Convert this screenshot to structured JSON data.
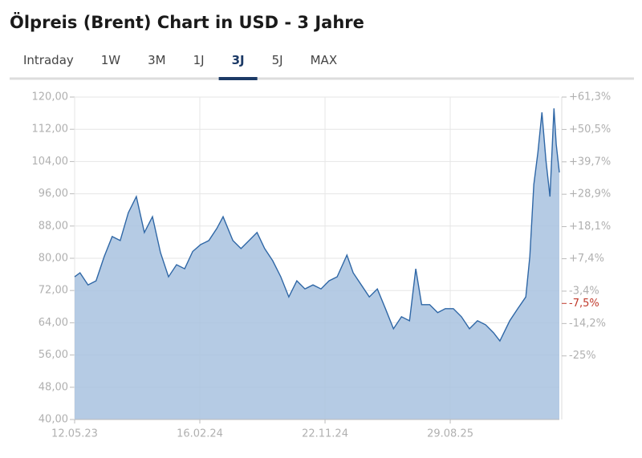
{
  "title": "Ölpreis (Brent) Chart in USD - 3 Jahre",
  "tabs": {
    "items": [
      "Intraday",
      "1W",
      "3M",
      "1J",
      "3J",
      "5J",
      "MAX"
    ],
    "active": 4
  },
  "chart_data": {
    "type": "area",
    "x": [
      "12.05.23",
      "24.05.23",
      "11.06.23",
      "29.06.23",
      "17.07.23",
      "04.08.23",
      "22.08.23",
      "09.09.23",
      "27.09.23",
      "15.10.23",
      "02.11.23",
      "20.11.23",
      "08.12.23",
      "26.12.23",
      "13.01.24",
      "31.01.24",
      "18.02.24",
      "07.03.24",
      "25.03.24",
      "08.04.24",
      "30.04.24",
      "18.05.24",
      "05.06.24",
      "23.06.24",
      "10.07.24",
      "28.07.24",
      "15.08.24",
      "02.09.24",
      "20.09.24",
      "08.10.24",
      "26.10.24",
      "13.11.24",
      "01.12.24",
      "19.12.24",
      "10.01.25",
      "24.01.25",
      "11.02.25",
      "01.03.25",
      "19.03.25",
      "06.04.25",
      "24.04.25",
      "12.05.25",
      "30.05.25",
      "13.06.25",
      "26.06.25",
      "14.07.25",
      "01.08.25",
      "18.08.25",
      "05.09.25",
      "23.09.25",
      "11.10.25",
      "29.10.25",
      "16.11.25",
      "04.12.25",
      "18.12.25",
      "09.01.26",
      "27.01.26",
      "14.02.26",
      "23.02.26",
      "04.03.26",
      "13.03.26",
      "22.03.26",
      "31.03.26",
      "09.04.26",
      "18.04.26",
      "23.04.26",
      "30.04.26"
    ],
    "series": [
      {
        "name": "Brent",
        "color": "#2f67a6",
        "fill": "#a8c2df",
        "values": [
          75.4,
          76.4,
          73.4,
          74.4,
          80.4,
          85.4,
          84.4,
          91.3,
          95.3,
          86.4,
          90.3,
          81.4,
          75.4,
          78.4,
          77.4,
          81.7,
          83.4,
          84.4,
          87.4,
          90.3,
          84.4,
          82.4,
          84.4,
          86.4,
          82.4,
          79.4,
          75.4,
          70.4,
          74.4,
          72.4,
          73.4,
          72.4,
          74.4,
          75.4,
          80.8,
          76.4,
          73.4,
          70.4,
          72.4,
          67.5,
          62.5,
          65.5,
          64.5,
          77.4,
          68.5,
          68.5,
          66.5,
          67.5,
          67.5,
          65.5,
          62.5,
          64.5,
          63.5,
          61.5,
          59.5,
          64.5,
          67.5,
          70.4,
          80.4,
          98.3,
          106.3,
          116.2,
          104.3,
          95.3,
          117.2,
          108.3,
          101.3
        ]
      }
    ],
    "xlim": [
      "12.05.23",
      "30.04.26"
    ],
    "xticks": [
      "12.05.23",
      "16.02.24",
      "22.11.24",
      "29.08.25"
    ],
    "ylim": [
      40,
      120
    ],
    "yticks": [
      {
        "value": 40,
        "label": "40,00"
      },
      {
        "value": 48,
        "label": "48,00"
      },
      {
        "value": 56,
        "label": "56,00"
      },
      {
        "value": 64,
        "label": "64,00"
      },
      {
        "value": 72,
        "label": "72,00"
      },
      {
        "value": 80,
        "label": "80,00"
      },
      {
        "value": 88,
        "label": "88,00"
      },
      {
        "value": 96,
        "label": "96,00"
      },
      {
        "value": 104,
        "label": "104,00"
      },
      {
        "value": 112,
        "label": "112,00"
      },
      {
        "value": 120,
        "label": "120,00"
      }
    ],
    "y2lim": [
      -46.2,
      61.3
    ],
    "y2ticks": [
      {
        "value": -25,
        "label": "-25%"
      },
      {
        "value": -14.2,
        "label": "-14,2%"
      },
      {
        "value": -3.4,
        "label": "-3,4%"
      },
      {
        "value": 7.4,
        "label": "+7,4%"
      },
      {
        "value": 18.1,
        "label": "+18,1%"
      },
      {
        "value": 28.9,
        "label": "+28,9%"
      },
      {
        "value": 39.7,
        "label": "+39,7%"
      },
      {
        "value": 50.5,
        "label": "+50,5%"
      },
      {
        "value": 61.3,
        "label": "+61,3%"
      }
    ],
    "y2_marker": {
      "value": -7.5,
      "label": "-7,5%",
      "color": "#c0392b"
    },
    "grid": true
  }
}
